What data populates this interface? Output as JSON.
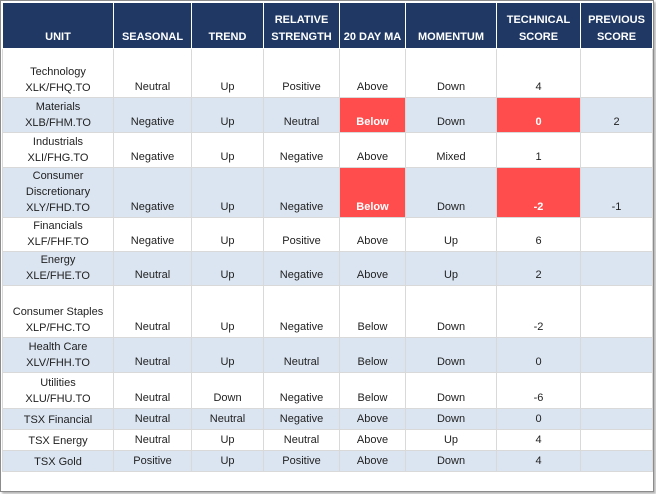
{
  "headers": [
    "UNIT",
    "SEASONAL",
    "TREND",
    "RELATIVE STRENGTH",
    "20 DAY MA",
    "MOMENTUM",
    "TECHNICAL SCORE",
    "PREVIOUS SCORE"
  ],
  "rows": [
    {
      "unit_line1": "Technology",
      "unit_line2": "XLK/FHQ.TO",
      "seasonal": "Neutral",
      "trend": "Up",
      "relative_strength": "Positive",
      "ma20": "Above",
      "momentum": "Down",
      "technical_score": "4",
      "previous_score": ""
    },
    {
      "unit_line1": "Materials",
      "unit_line2": "XLB/FHM.TO",
      "seasonal": "Negative",
      "trend": "Up",
      "relative_strength": "Neutral",
      "ma20": "Below",
      "momentum": "Down",
      "technical_score": "0",
      "previous_score": "2"
    },
    {
      "unit_line1": "Industrials",
      "unit_line2": "XLI/FHG.TO",
      "seasonal": "Negative",
      "trend": "Up",
      "relative_strength": "Negative",
      "ma20": "Above",
      "momentum": "Mixed",
      "technical_score": "1",
      "previous_score": ""
    },
    {
      "unit_line1": "Consumer",
      "unit_line2": "Discretionary",
      "unit_line3": "XLY/FHD.TO",
      "seasonal": "Negative",
      "trend": "Up",
      "relative_strength": "Negative",
      "ma20": "Below",
      "momentum": "Down",
      "technical_score": "-2",
      "previous_score": "-1"
    },
    {
      "unit_line1": "Financials",
      "unit_line2": "XLF/FHF.TO",
      "seasonal": "Negative",
      "trend": "Up",
      "relative_strength": "Positive",
      "ma20": "Above",
      "momentum": "Up",
      "technical_score": "6",
      "previous_score": ""
    },
    {
      "unit_line1": "Energy",
      "unit_line2": "XLE/FHE.TO",
      "seasonal": "Neutral",
      "trend": "Up",
      "relative_strength": "Negative",
      "ma20": "Above",
      "momentum": "Up",
      "technical_score": "2",
      "previous_score": ""
    },
    {
      "unit_line1": "Consumer Staples",
      "unit_line2": "XLP/FHC.TO",
      "seasonal": "Neutral",
      "trend": "Up",
      "relative_strength": "Negative",
      "ma20": "Below",
      "momentum": "Down",
      "technical_score": "-2",
      "previous_score": ""
    },
    {
      "unit_line1": "Health Care",
      "unit_line2": "XLV/FHH.TO",
      "seasonal": "Neutral",
      "trend": "Up",
      "relative_strength": "Neutral",
      "ma20": "Below",
      "momentum": "Down",
      "technical_score": "0",
      "previous_score": ""
    },
    {
      "unit_line1": "Utilities",
      "unit_line2": "XLU/FHU.TO",
      "seasonal": "Neutral",
      "trend": "Down",
      "relative_strength": "Negative",
      "ma20": "Below",
      "momentum": "Down",
      "technical_score": "-6",
      "previous_score": ""
    },
    {
      "unit_line1": "TSX Financial",
      "seasonal": "Neutral",
      "trend": "Neutral",
      "relative_strength": "Negative",
      "ma20": "Above",
      "momentum": "Down",
      "technical_score": "0",
      "previous_score": ""
    },
    {
      "unit_line1": "TSX Energy",
      "seasonal": "Neutral",
      "trend": "Up",
      "relative_strength": "Neutral",
      "ma20": "Above",
      "momentum": "Up",
      "technical_score": "4",
      "previous_score": ""
    },
    {
      "unit_line1": "TSX Gold",
      "seasonal": "Positive",
      "trend": "Up",
      "relative_strength": "Positive",
      "ma20": "Above",
      "momentum": "Down",
      "technical_score": "4",
      "previous_score": ""
    }
  ],
  "colors": {
    "header_bg": "#1f3864",
    "header_text": "#ffffff",
    "alt_row": "#dbe5f1",
    "highlight_red": "#ff4d4d"
  }
}
